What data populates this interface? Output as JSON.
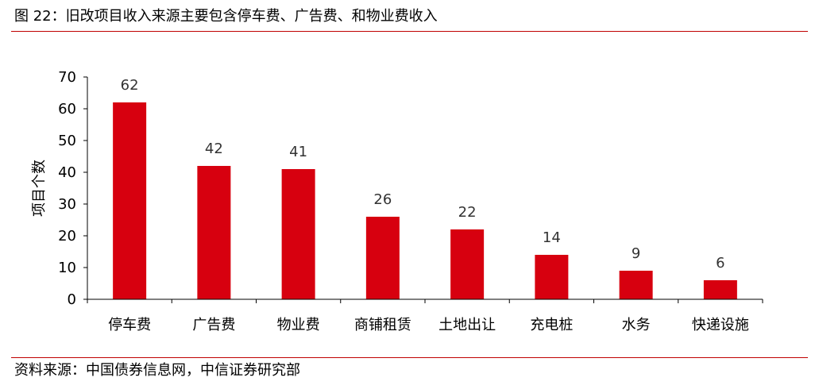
{
  "figure": {
    "title": "图 22：旧改项目收入来源主要包含停车费、广告费、和物业费收入",
    "source": "资料来源：中国债券信息网，中信证券研究部"
  },
  "colors": {
    "bar": "#d7000f",
    "axis": "#000000",
    "rule": "#c00000"
  },
  "chart_data": {
    "type": "bar",
    "title": "",
    "xlabel": "",
    "ylabel": "项目个数",
    "categories": [
      "停车费",
      "广告费",
      "物业费",
      "商铺租赁",
      "土地出让",
      "充电桩",
      "水务",
      "快递设施"
    ],
    "values": [
      62,
      42,
      41,
      26,
      22,
      14,
      9,
      6
    ],
    "data_labels": [
      "62",
      "42",
      "41",
      "26",
      "22",
      "14",
      "9",
      "6"
    ],
    "ylim": [
      0,
      70
    ],
    "yticks": [
      0,
      10,
      20,
      30,
      40,
      50,
      60,
      70
    ],
    "ytick_labels": [
      "0",
      "10",
      "20",
      "30",
      "40",
      "50",
      "60",
      "70"
    ],
    "grid": false,
    "legend": "none"
  }
}
